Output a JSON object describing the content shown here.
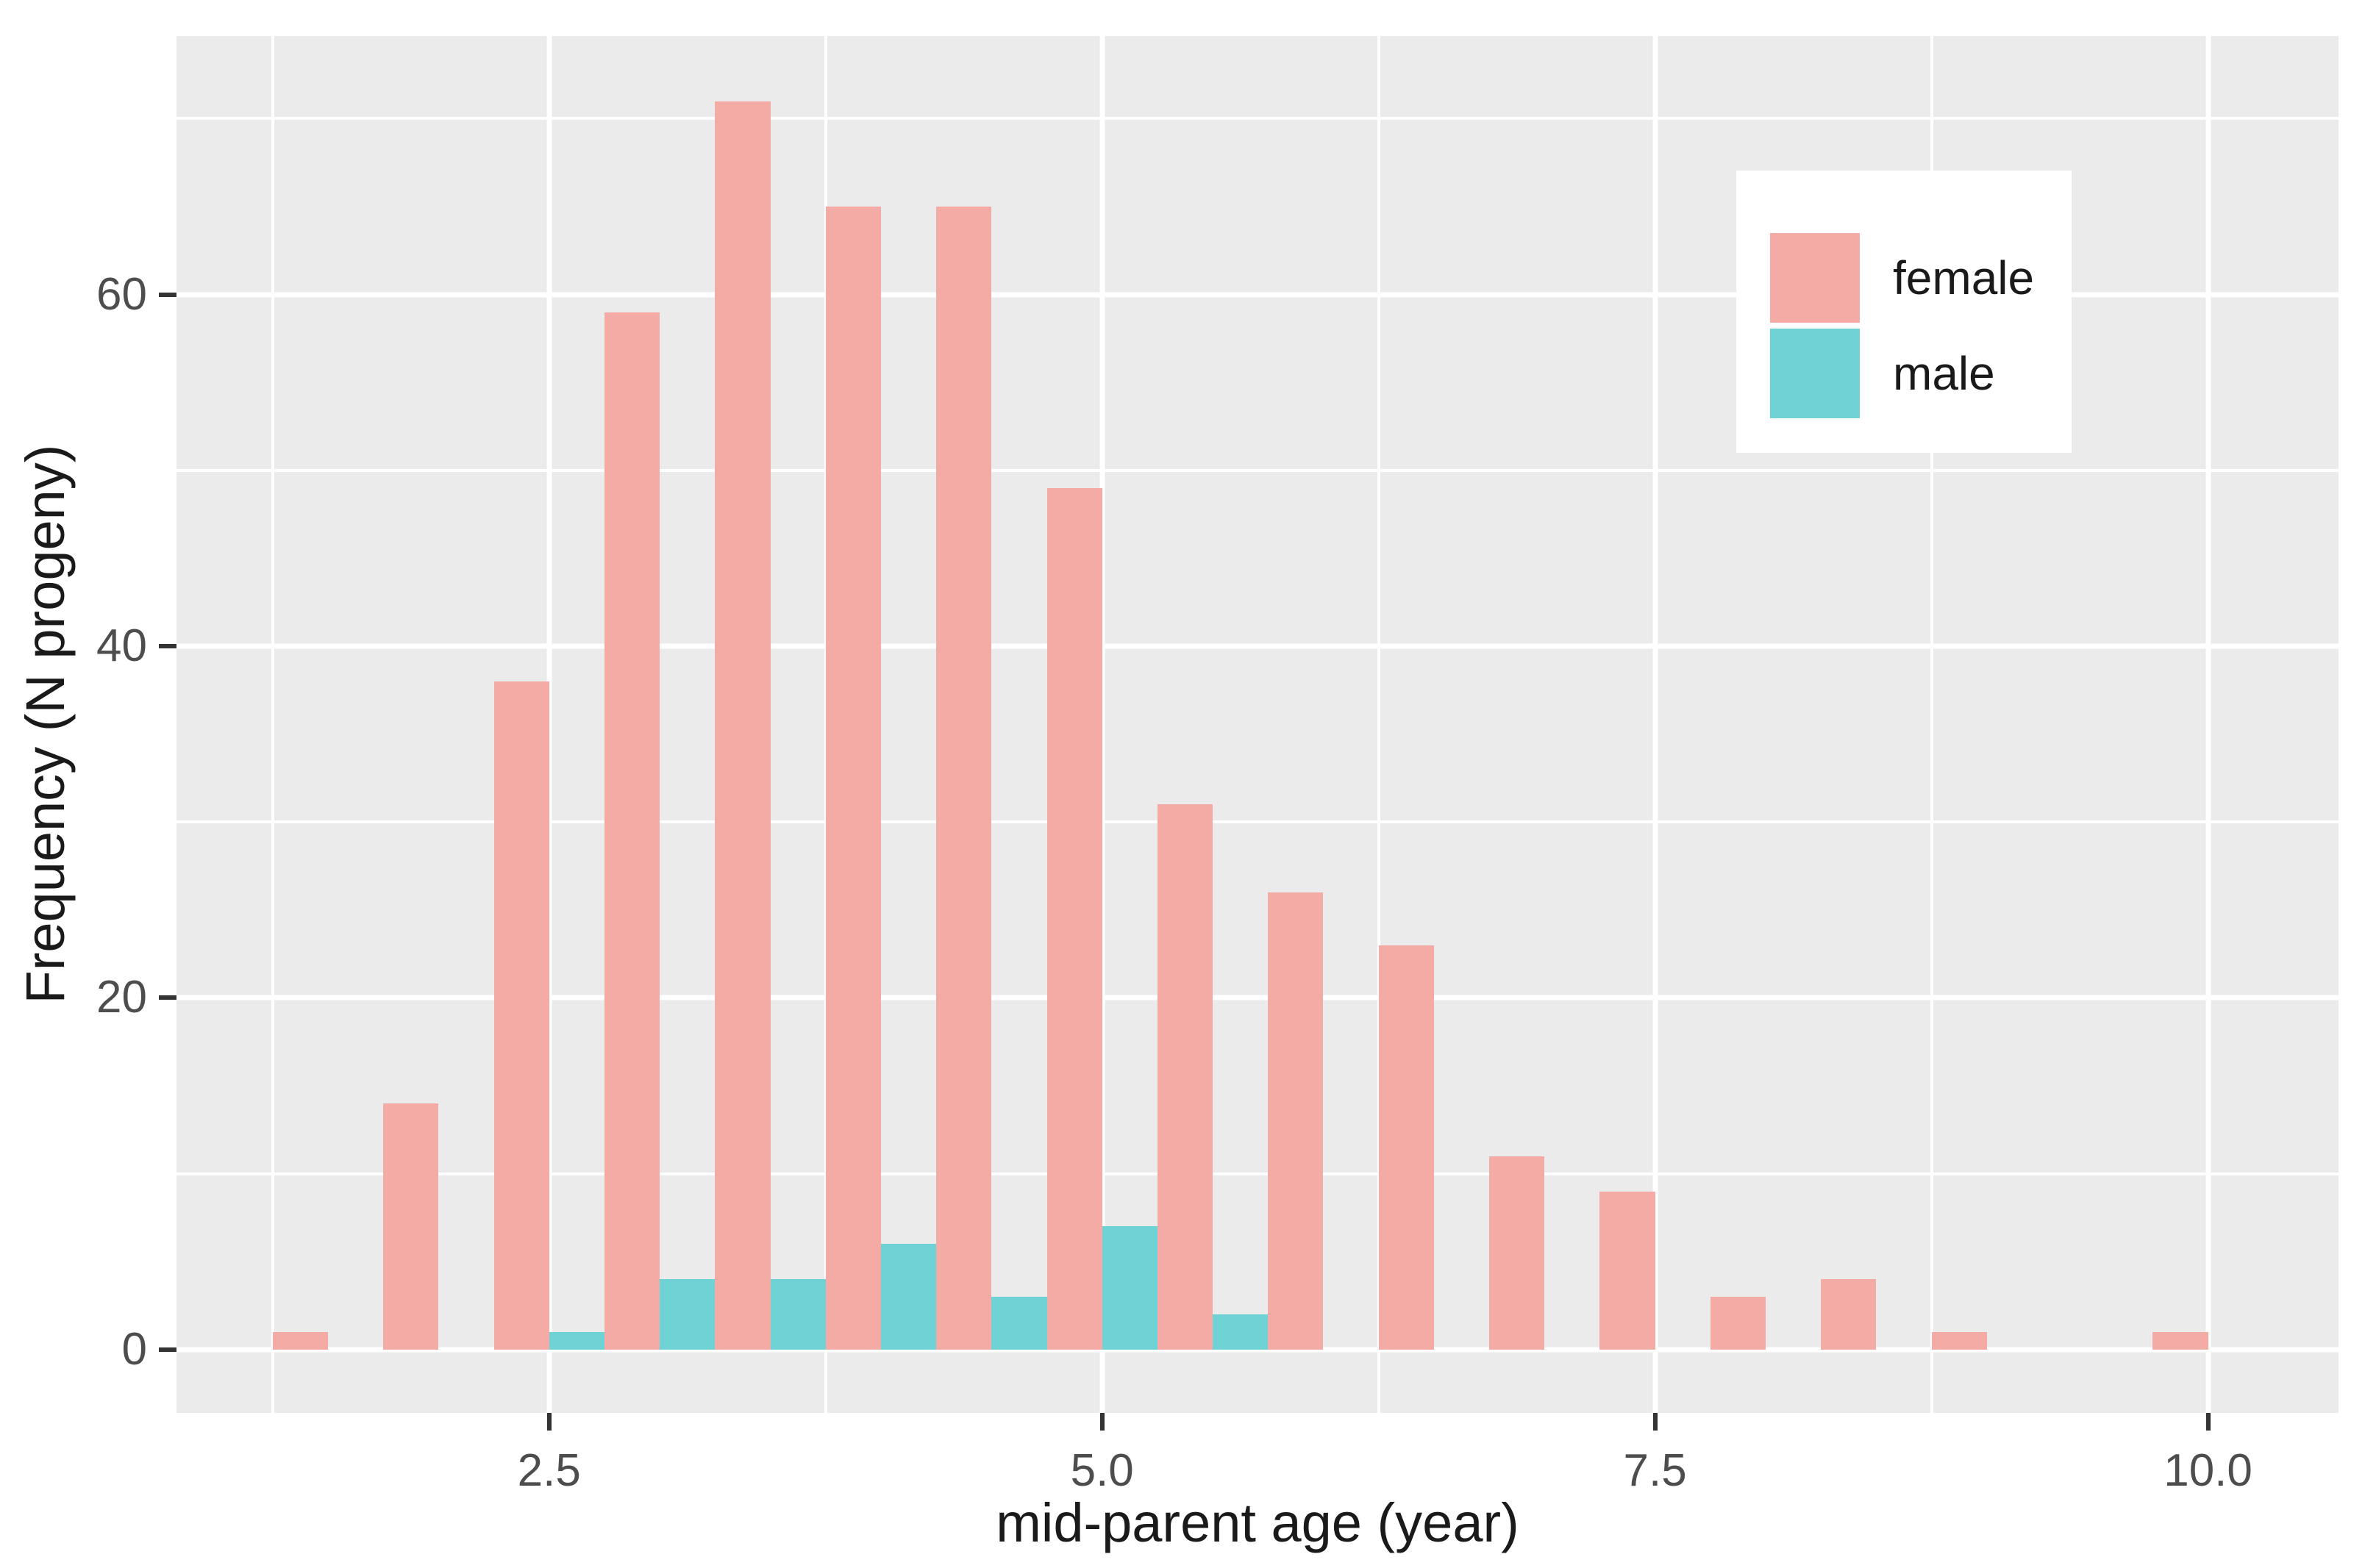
{
  "figure": {
    "x_axis_title": "mid-parent age (year)",
    "y_axis_title": "Frequency (N progeny)"
  },
  "legend": {
    "items": [
      {
        "label": "female",
        "color": "#F4ABA5"
      },
      {
        "label": "male",
        "color": "#6FD3D6"
      }
    ]
  },
  "colors": {
    "panel_bg": "#EBEBEB",
    "grid": "#FFFFFF",
    "axis_text": "#4D4D4D",
    "axis_title": "#1A1A1A",
    "tick_mark": "#333333",
    "legend_bg": "#FFFFFF",
    "legend_text": "#1A1A1A",
    "female": "#F4ABA5",
    "male": "#6FD3D6"
  },
  "chart_data": {
    "type": "bar",
    "subtype": "dodged-histogram",
    "title": "",
    "xlabel": "mid-parent age (year)",
    "ylabel": "Frequency (N progeny)",
    "grid": true,
    "legend_position": "inside-top-right",
    "bin_width": 0.5,
    "bar_width": 0.25,
    "xlim": [
      0.815,
      10.59
    ],
    "ylim": [
      -3.6,
      74.7
    ],
    "x_major_ticks": [
      2.5,
      5.0,
      7.5,
      10.0
    ],
    "x_tick_labels": [
      "2.5",
      "5.0",
      "7.5",
      "10.0"
    ],
    "x_minor_gridlines": [
      1.25,
      3.75,
      6.25,
      8.75
    ],
    "y_major_ticks": [
      0,
      20,
      40,
      60
    ],
    "y_tick_labels": [
      "0",
      "20",
      "40",
      "60"
    ],
    "y_minor_gridlines": [
      10,
      30,
      50,
      70
    ],
    "series": [
      {
        "name": "female",
        "dodge": "left",
        "bin_centers": [
          1.5,
          2.0,
          2.5,
          3.0,
          3.5,
          4.0,
          4.5,
          5.0,
          5.5,
          6.0,
          6.5,
          7.0,
          7.5,
          8.0,
          8.5,
          9.0,
          10.0
        ],
        "values": [
          1,
          14,
          38,
          59,
          71,
          65,
          65,
          49,
          31,
          26,
          23,
          11,
          9,
          3,
          4,
          1,
          1
        ]
      },
      {
        "name": "male",
        "dodge": "right",
        "bin_centers": [
          2.5,
          3.0,
          3.5,
          4.0,
          4.5,
          5.0,
          5.5
        ],
        "values": [
          1,
          4,
          4,
          6,
          3,
          7,
          2
        ]
      }
    ]
  }
}
